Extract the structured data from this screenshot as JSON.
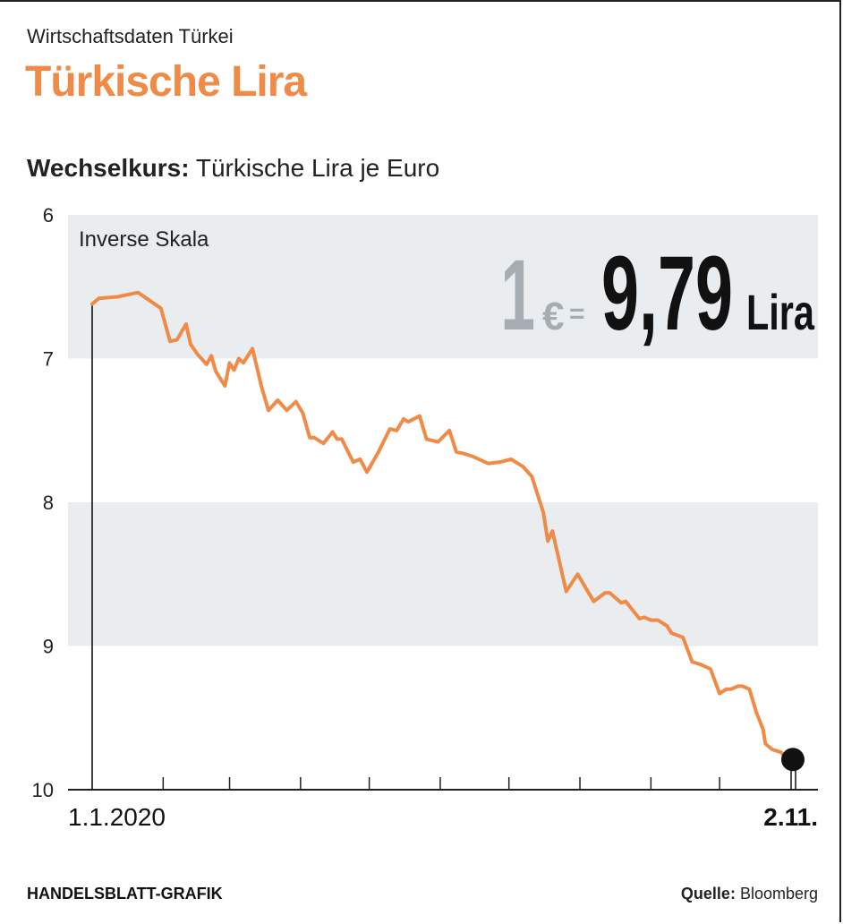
{
  "header": {
    "overline": "Wirtschaftsdaten Türkei",
    "title": "Türkische Lira",
    "subtitle_bold": "Wechselkurs:",
    "subtitle_rest": " Türkische Lira je Euro"
  },
  "callout": {
    "one": "1",
    "euro": "€",
    "equals": "=",
    "value": "9,79",
    "unit": "Lira"
  },
  "footer": {
    "left": "HANDELSBLATT-GRAFIK",
    "source_label": "Quelle:",
    "source_value": " Bloomberg"
  },
  "colors": {
    "line": "#f08a47",
    "band": "#e9edf0",
    "title": "#f08a47",
    "callout_grey": "#a6adb2"
  },
  "chart_data": {
    "type": "line",
    "title": "Türkische Lira",
    "subtitle": "Wechselkurs: Türkische Lira je Euro",
    "annotation": "Inverse Skala",
    "y_inverted": true,
    "ylim": [
      6,
      10
    ],
    "yticks": [
      "6",
      "7",
      "8",
      "9",
      "10"
    ],
    "x_start_label": "1.1.2020",
    "x_end_label": "2.11.",
    "x_range_days": [
      0,
      306
    ],
    "series": [
      {
        "x": [
          0,
          3,
          11,
          20,
          30,
          34,
          37,
          41,
          43,
          46,
          50,
          52,
          54,
          58,
          60,
          62,
          64,
          66,
          70,
          74,
          77,
          81,
          85,
          89,
          92,
          95,
          97,
          101,
          105,
          107,
          109,
          114,
          117,
          120,
          125,
          130,
          133,
          136,
          138,
          143,
          146,
          151,
          156,
          159,
          162,
          166,
          173,
          178,
          183,
          188,
          192,
          197,
          199,
          201,
          207,
          212,
          219,
          224,
          226,
          231,
          233,
          236,
          239,
          241,
          244,
          247,
          251,
          253,
          258,
          262,
          266,
          270,
          274,
          277,
          279,
          282,
          284,
          287,
          290,
          293,
          294,
          297,
          301,
          303,
          306
        ],
        "y": [
          6.62,
          6.58,
          6.57,
          6.54,
          6.65,
          6.88,
          6.87,
          6.76,
          6.9,
          6.97,
          7.04,
          6.98,
          7.09,
          7.19,
          7.03,
          7.08,
          7.0,
          7.03,
          6.93,
          7.2,
          7.36,
          7.29,
          7.36,
          7.3,
          7.38,
          7.55,
          7.55,
          7.59,
          7.51,
          7.56,
          7.56,
          7.72,
          7.7,
          7.79,
          7.65,
          7.49,
          7.5,
          7.42,
          7.44,
          7.4,
          7.56,
          7.58,
          7.5,
          7.65,
          7.66,
          7.68,
          7.73,
          7.72,
          7.7,
          7.75,
          7.82,
          8.07,
          8.27,
          8.2,
          8.62,
          8.5,
          8.69,
          8.63,
          8.63,
          8.7,
          8.69,
          8.75,
          8.81,
          8.8,
          8.82,
          8.82,
          8.86,
          8.91,
          8.94,
          9.11,
          9.13,
          9.16,
          9.33,
          9.3,
          9.3,
          9.28,
          9.28,
          9.3,
          9.46,
          9.58,
          9.68,
          9.72,
          9.74,
          9.79,
          9.79
        ]
      }
    ],
    "endpoint_value": 9.79
  }
}
